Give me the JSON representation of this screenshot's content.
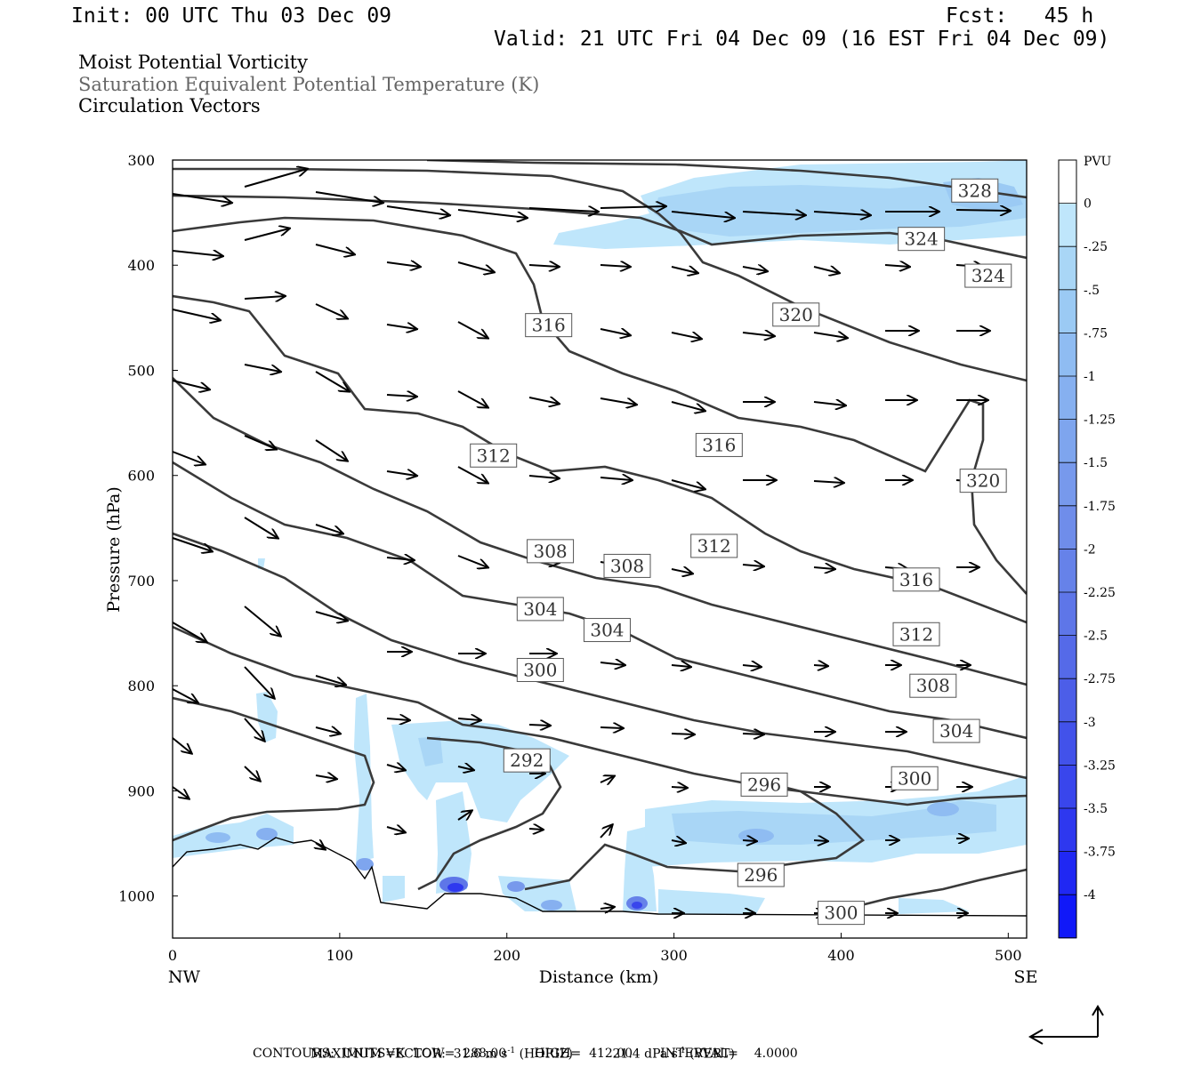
{
  "header": {
    "init": "Init: 00 UTC Thu 03 Dec 09",
    "fcst": "Fcst:   45 h",
    "valid": "Valid: 21 UTC Fri 04 Dec 09 (16 EST Fri 04 Dec 09)",
    "field1": "Moist Potential Vorticity",
    "field2": "Saturation Equivalent Potential Temperature (K)",
    "field3": "Circulation Vectors"
  },
  "footer": {
    "maxvec_label": "MAXIMUM VECTOR:",
    "horiz": "31.6 m s",
    "horiz_exp": "-1",
    "horiz_tag": " (HORIZ)",
    "vert": "21.4 dPa s",
    "vert_exp": "-1",
    "vert_tag": " (VERT)",
    "contours": "CONTOURS:  UNITS=K  LOW=  288.00       HIGH=  412.00       INTERVAL=    4.0000"
  },
  "chart_data": {
    "type": "cross-section",
    "xlabel": "Distance (km)",
    "ylabel": "Pressure (hPa)",
    "x_end_labels": {
      "left": "NW",
      "right": "SE"
    },
    "xlim": [
      0,
      511
    ],
    "ylim": [
      1040,
      300
    ],
    "x_ticks": [
      0,
      100,
      200,
      300,
      400,
      500
    ],
    "y_ticks": [
      300,
      400,
      500,
      600,
      700,
      800,
      900,
      1000
    ],
    "colorbar": {
      "title": "PVU",
      "labels": [
        "0",
        "-.25",
        "-.5",
        "-.75",
        "-1",
        "-1.25",
        "-1.5",
        "-1.75",
        "-2",
        "-2.25",
        "-2.5",
        "-2.75",
        "-3",
        "-3.25",
        "-3.5",
        "-3.75",
        "-4"
      ],
      "colors": [
        "#ffffff",
        "#bfe6fb",
        "#a9d6f6",
        "#9bcaf4",
        "#8fbcf2",
        "#86b0f0",
        "#7ea5ee",
        "#7799ec",
        "#6f8dea",
        "#6682e9",
        "#5e76e8",
        "#556ae8",
        "#4c5ee8",
        "#4252ea",
        "#3946ec",
        "#2e38ef",
        "#2028f3",
        "#1018f8"
      ]
    },
    "contour_labels": [
      {
        "v": "328",
        "x": 480,
        "p": 329
      },
      {
        "v": "324",
        "x": 448,
        "p": 375
      },
      {
        "v": "324",
        "x": 488,
        "p": 410
      },
      {
        "v": "320",
        "x": 373,
        "p": 447
      },
      {
        "v": "320",
        "x": 485,
        "p": 605
      },
      {
        "v": "316",
        "x": 225,
        "p": 457
      },
      {
        "v": "316",
        "x": 327,
        "p": 571
      },
      {
        "v": "316",
        "x": 445,
        "p": 699
      },
      {
        "v": "312",
        "x": 192,
        "p": 581
      },
      {
        "v": "312",
        "x": 324,
        "p": 667
      },
      {
        "v": "312",
        "x": 445,
        "p": 751
      },
      {
        "v": "308",
        "x": 226,
        "p": 672
      },
      {
        "v": "308",
        "x": 272,
        "p": 686
      },
      {
        "v": "308",
        "x": 455,
        "p": 800
      },
      {
        "v": "304",
        "x": 220,
        "p": 727
      },
      {
        "v": "304",
        "x": 260,
        "p": 747
      },
      {
        "v": "304",
        "x": 469,
        "p": 843
      },
      {
        "v": "300",
        "x": 220,
        "p": 785
      },
      {
        "v": "300",
        "x": 444,
        "p": 888
      },
      {
        "v": "300",
        "x": 400,
        "p": 1016
      },
      {
        "v": "296",
        "x": 354,
        "p": 894
      },
      {
        "v": "296",
        "x": 352,
        "p": 980
      },
      {
        "v": "292",
        "x": 212,
        "p": 871
      }
    ]
  }
}
